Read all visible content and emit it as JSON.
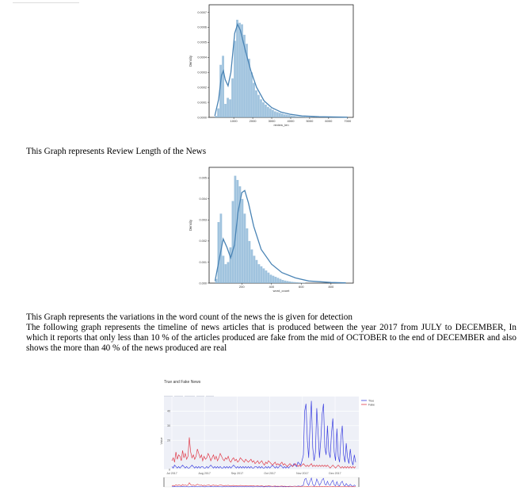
{
  "captions": {
    "review_length": "This Graph represents Review Length of the News",
    "word_count": "This Graph represents the variations in the word count  of the news the is given for detection",
    "timeline_intro": "The following graph represents the timeline of news articles that is produced between the year 2017 from  JULY to DECEMBER, In which it reports that only less than 10 % of the articles produced are fake from  the mid of  OCTOBER to the end of DECEMBER and also shows the more than 40 % of the news produced are real"
  },
  "chart_data": [
    {
      "type": "bar",
      "subtype": "histogram-with-kde",
      "xlabel": "review_len",
      "ylabel": "Density",
      "x_ticks": [
        "1000",
        "2000",
        "3000",
        "4000",
        "5000",
        "6000",
        "7000"
      ],
      "y_ticks": [
        "0.0000",
        "0.0001",
        "0.0002",
        "0.0003",
        "0.0004",
        "0.0005",
        "0.0006",
        "0.0007"
      ],
      "xlim": [
        -300,
        7300
      ],
      "ylim": [
        0,
        0.00075
      ],
      "bin_width": 125,
      "bins_start": 0,
      "values": [
        1e-05,
        6e-05,
        0.00035,
        0.00041,
        9e-05,
        0.00013,
        0.00012,
        0.00026,
        0.00051,
        0.00065,
        0.00063,
        0.00062,
        0.00055,
        0.00049,
        0.00039,
        0.0003,
        0.00023,
        0.00018,
        0.00015,
        0.00012,
        0.0001,
        8.5e-05,
        7e-05,
        6e-05,
        5e-05,
        4e-05,
        3.5e-05,
        3e-05,
        2.5e-05,
        2e-05,
        1.8e-05,
        1.5e-05,
        1.2e-05,
        1e-05,
        8e-06,
        7e-06,
        6e-06,
        5e-06,
        4e-06,
        3e-06,
        3e-06,
        2e-06,
        2e-06,
        2e-06,
        1e-06,
        1e-06
      ],
      "kde": [
        [
          0,
          1e-05
        ],
        [
          200,
          0.00012
        ],
        [
          350,
          0.00028
        ],
        [
          450,
          0.00031
        ],
        [
          550,
          0.00025
        ],
        [
          700,
          0.00021
        ],
        [
          850,
          0.0003
        ],
        [
          1050,
          0.00056
        ],
        [
          1200,
          0.00062
        ],
        [
          1350,
          0.00058
        ],
        [
          1600,
          0.00045
        ],
        [
          1900,
          0.00031
        ],
        [
          2200,
          0.0002
        ],
        [
          2600,
          0.00011
        ],
        [
          3000,
          6.5e-05
        ],
        [
          3500,
          3.5e-05
        ],
        [
          4000,
          2e-05
        ],
        [
          4600,
          1e-05
        ],
        [
          5500,
          4e-06
        ],
        [
          7000,
          1e-06
        ]
      ],
      "color": "#8fb8d8",
      "line_color": "#4a84b5"
    },
    {
      "type": "bar",
      "subtype": "histogram-with-kde",
      "xlabel": "word_count",
      "ylabel": "Density",
      "x_ticks": [
        "200",
        "400",
        "600",
        "800"
      ],
      "y_ticks": [
        "0.000",
        "0.001",
        "0.002",
        "0.003",
        "0.004",
        "0.005"
      ],
      "xlim": [
        -20,
        950
      ],
      "ylim": [
        0,
        0.0055
      ],
      "bin_width": 16,
      "bins_start": 20,
      "values": [
        0.0002,
        0.0029,
        0.0033,
        0.0013,
        0.0009,
        0.001,
        0.0017,
        0.0039,
        0.0051,
        0.0049,
        0.0046,
        0.004,
        0.0033,
        0.0026,
        0.002,
        0.0016,
        0.0013,
        0.0011,
        0.0009,
        0.0008,
        0.0007,
        0.0006,
        0.0005,
        0.0004,
        0.00035,
        0.0003,
        0.00025,
        0.0002,
        0.00015,
        0.00012,
        0.0001,
        8e-05,
        6e-05,
        5e-05,
        4e-05,
        3e-05,
        2e-05,
        2e-05
      ],
      "kde": [
        [
          20,
          0.0001
        ],
        [
          50,
          0.0012
        ],
        [
          75,
          0.0021
        ],
        [
          100,
          0.0017
        ],
        [
          125,
          0.0012
        ],
        [
          150,
          0.0018
        ],
        [
          175,
          0.0034
        ],
        [
          200,
          0.0043
        ],
        [
          220,
          0.0044
        ],
        [
          245,
          0.0038
        ],
        [
          280,
          0.0027
        ],
        [
          330,
          0.0016
        ],
        [
          400,
          0.0009
        ],
        [
          470,
          0.0005
        ],
        [
          560,
          0.00025
        ],
        [
          650,
          0.0001
        ],
        [
          800,
          3e-05
        ],
        [
          900,
          1e-05
        ]
      ],
      "color": "#8fb8d8",
      "line_color": "#4a84b5"
    },
    {
      "type": "line",
      "title": "True and Fake News",
      "ylabel": "Value",
      "range_buttons": [
        "1m",
        "6m",
        "YTD",
        "1y",
        "all"
      ],
      "active_button": "all",
      "x_ticks": [
        "Jul 2017",
        "Aug 2017",
        "Sep 2017",
        "Oct 2017",
        "Nov 2017",
        "Dec 2017"
      ],
      "y_ticks": [
        "0",
        "20",
        "30",
        "40"
      ],
      "ylim": [
        0,
        50
      ],
      "legend_position": "top-right",
      "series": [
        {
          "name": "True",
          "color": "#3b40e0",
          "values": [
            2,
            1,
            3,
            2,
            1,
            2,
            1,
            2,
            3,
            2,
            1,
            2,
            1,
            1,
            2,
            3,
            2,
            1,
            2,
            1,
            2,
            1,
            2,
            2,
            1,
            1,
            2,
            1,
            2,
            3,
            2,
            1,
            2,
            1,
            2,
            1,
            2,
            1,
            1,
            2,
            1,
            2,
            1,
            2,
            1,
            2,
            3,
            2,
            1,
            2,
            1,
            2,
            1,
            2,
            1,
            2,
            1,
            2,
            1,
            2,
            1,
            1,
            2,
            2,
            1,
            2,
            1,
            2,
            1,
            1,
            2,
            1,
            2,
            1,
            2,
            3,
            2,
            1,
            2,
            1,
            2,
            3,
            2,
            1,
            2,
            1,
            2,
            1,
            2,
            3,
            2,
            4,
            3,
            2,
            5,
            4,
            3,
            6,
            10,
            40,
            45,
            20,
            8,
            30,
            47,
            15,
            6,
            12,
            42,
            25,
            8,
            20,
            38,
            45,
            15,
            10,
            30,
            12,
            8,
            25,
            35,
            12,
            6,
            28,
            9,
            5,
            22,
            30,
            10,
            5,
            18,
            8,
            4,
            14,
            6,
            3,
            10,
            5
          ]
        },
        {
          "name": "Fake",
          "color": "#e03c4a",
          "values": [
            6,
            8,
            5,
            12,
            7,
            10,
            9,
            6,
            13,
            8,
            11,
            7,
            9,
            22,
            12,
            8,
            10,
            7,
            9,
            14,
            11,
            8,
            10,
            6,
            9,
            7,
            8,
            11,
            9,
            6,
            8,
            10,
            7,
            9,
            6,
            8,
            11,
            9,
            7,
            6,
            8,
            7,
            9,
            6,
            5,
            7,
            8,
            6,
            7,
            5,
            6,
            8,
            7,
            6,
            5,
            7,
            6,
            5,
            6,
            7,
            5,
            6,
            4,
            5,
            6,
            4,
            5,
            6,
            4,
            3,
            5,
            4,
            6,
            5,
            4,
            3,
            4,
            5,
            3,
            4,
            3,
            4,
            5,
            3,
            4,
            3,
            2,
            3,
            4,
            3,
            2,
            3,
            4,
            3,
            2,
            3,
            2,
            3,
            4,
            3,
            2,
            3,
            2,
            3,
            4,
            2,
            3,
            2,
            3,
            2,
            3,
            2,
            3,
            2,
            3,
            2,
            3,
            2,
            1,
            2,
            3,
            2,
            1,
            2,
            3,
            2,
            1,
            2,
            1,
            2,
            1,
            2,
            1,
            2,
            1,
            2,
            1,
            2
          ]
        }
      ]
    }
  ]
}
